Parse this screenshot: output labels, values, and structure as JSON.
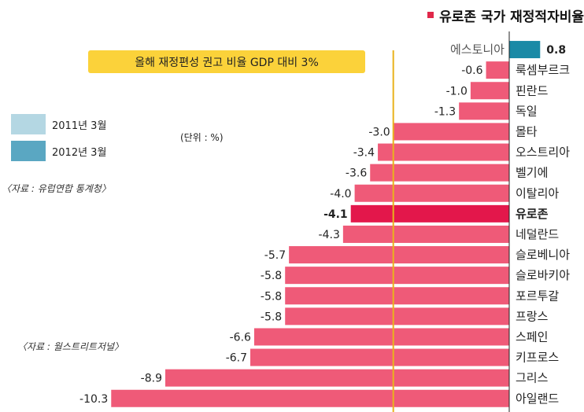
{
  "title": "유로존 국가 재정적자비율",
  "banner": "올해 재정편성 권고 비율 GDP 대비 3%",
  "unit": "(단위 : %)",
  "legend": [
    {
      "label": "2011년 3월",
      "color": "#b4d7e3"
    },
    {
      "label": "2012년 3월",
      "color": "#5aa7c2"
    }
  ],
  "sources": [
    "〈자료 : 유럽연합 통계청〉",
    "〈자료 : 월스트리트저널〉"
  ],
  "colors": {
    "bar": "#ef5a78",
    "eurozone": "#e3174b",
    "positive": "#1a8aa6",
    "threshold": "#e9b21c"
  },
  "chart_data": {
    "type": "bar",
    "orientation": "horizontal",
    "threshold": -3,
    "categories": [
      "에스토니아",
      "룩셈부르크",
      "핀란드",
      "독일",
      "몰타",
      "오스트리아",
      "벨기에",
      "이탈리아",
      "유로존",
      "네덜란드",
      "슬로베니아",
      "슬로바키아",
      "포르투갈",
      "프랑스",
      "스페인",
      "키프로스",
      "그리스",
      "아일랜드"
    ],
    "value_labels": [
      "0.8",
      "-0.6",
      "-1.0",
      "-1.3",
      "-3.0",
      "-3.4",
      "-3.6",
      "-4.0",
      "-4.1",
      "-4.3",
      "-5.7",
      "-5.8",
      "-5.8",
      "-5.8",
      "-6.6",
      "-6.7",
      "-8.9",
      "-10.3"
    ],
    "values": [
      0.8,
      -0.6,
      -1.0,
      -1.3,
      -3.0,
      -3.4,
      -3.6,
      -4.0,
      -4.1,
      -4.3,
      -5.7,
      -5.8,
      -5.8,
      -5.8,
      -6.6,
      -6.7,
      -8.9,
      -10.3
    ],
    "highlight": "유로존",
    "xlim": [
      -10.5,
      1.1
    ]
  }
}
